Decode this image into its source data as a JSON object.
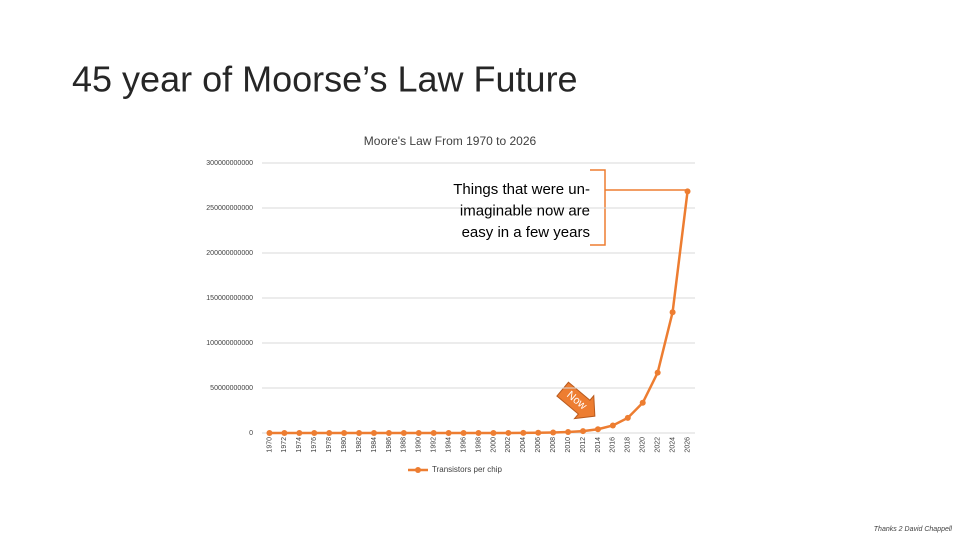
{
  "slide": {
    "title": "45 year of Moorse’s Law Future",
    "footer": "Thanks 2 David Chappell"
  },
  "chart_data": {
    "type": "line",
    "title": "Moore's Law From 1970 to 2026",
    "categories": [
      "1970",
      "1972",
      "1974",
      "1976",
      "1978",
      "1980",
      "1982",
      "1984",
      "1986",
      "1988",
      "1990",
      "1992",
      "1994",
      "1996",
      "1998",
      "2000",
      "2002",
      "2004",
      "2006",
      "2008",
      "2010",
      "2012",
      "2014",
      "2016",
      "2018",
      "2020",
      "2022",
      "2024",
      "2026"
    ],
    "series": [
      {
        "name": "Transistors per chip",
        "color": "#ed7d31",
        "values": [
          1000,
          2000,
          4000,
          8000,
          16000,
          32000,
          64000,
          128000,
          256000,
          512000,
          1024000,
          2048000,
          4096000,
          8192000,
          16384000,
          32768000,
          65536000,
          131072000,
          262144000,
          524288000,
          1048576000,
          2097152000,
          4194304000,
          8388608000,
          16777216000,
          33554432000,
          67108864000,
          134217728000,
          268435456000
        ]
      }
    ],
    "ylim": [
      0,
      300000000000
    ],
    "yticks": [
      0,
      50000000000,
      100000000000,
      150000000000,
      200000000000,
      250000000000,
      300000000000
    ],
    "grid": true,
    "legend": "bottom",
    "annotation": [
      "Things that were un-",
      "imaginable now are",
      "easy in a few years"
    ],
    "arrow_label": "Now"
  }
}
